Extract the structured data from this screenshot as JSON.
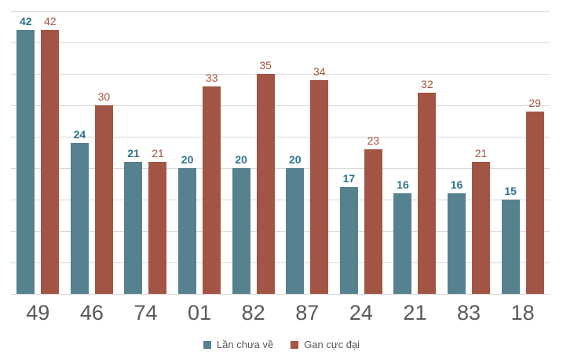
{
  "chart_data": {
    "type": "bar",
    "categories": [
      "49",
      "46",
      "74",
      "01",
      "82",
      "87",
      "24",
      "21",
      "83",
      "18"
    ],
    "series": [
      {
        "name": "Lần chưa về",
        "color": "#56818E",
        "label_color": "#2E7488",
        "values": [
          42,
          24,
          21,
          20,
          20,
          20,
          17,
          16,
          16,
          15
        ]
      },
      {
        "name": "Gan cực đại",
        "color": "#A25544",
        "label_color": "#A2543F",
        "values": [
          42,
          30,
          21,
          33,
          35,
          34,
          23,
          32,
          21,
          29
        ]
      }
    ],
    "ylim": [
      0,
      45
    ],
    "gridline_step": 5,
    "grid": true,
    "legend_position": "bottom",
    "value_labels": true,
    "axis_text_color": "#595959",
    "gridline_color": "#D9D9D9",
    "background": "#FFFFFF"
  }
}
